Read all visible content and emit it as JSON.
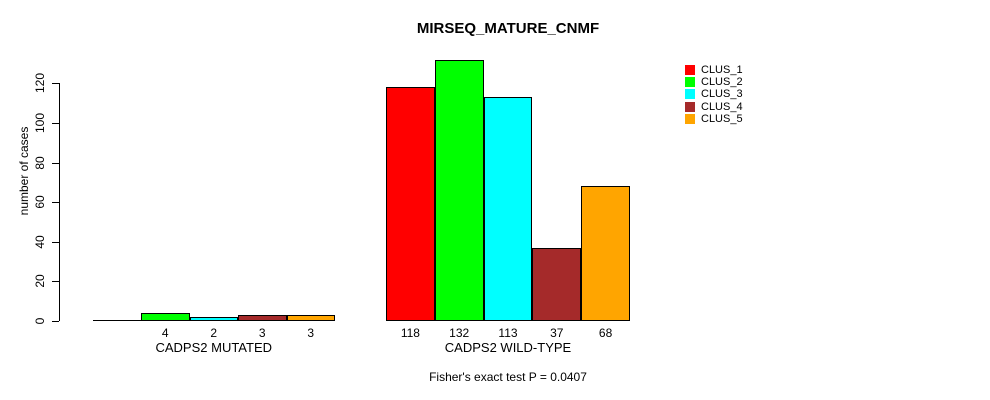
{
  "figure": {
    "title": "MIRSEQ_MATURE_CNMF",
    "note": "Fisher's exact test P = 0.0407"
  },
  "chart_data": {
    "type": "bar",
    "title": "MIRSEQ_MATURE_CNMF",
    "xlabel": "",
    "ylabel": "number of cases",
    "ylim": [
      0,
      120
    ],
    "yticks": [
      0,
      20,
      40,
      60,
      80,
      100,
      120
    ],
    "grid": false,
    "legend_position": "topright",
    "categories": [
      "CADPS2 MUTATED",
      "CADPS2 WILD-TYPE"
    ],
    "series": [
      {
        "name": "CLUS_1",
        "color": "#ff0000",
        "values": [
          0,
          118
        ]
      },
      {
        "name": "CLUS_2",
        "color": "#00ff00",
        "values": [
          4,
          132
        ]
      },
      {
        "name": "CLUS_3",
        "color": "#00ffff",
        "values": [
          2,
          113
        ]
      },
      {
        "name": "CLUS_4",
        "color": "#a52a2a",
        "values": [
          3,
          37
        ]
      },
      {
        "name": "CLUS_5",
        "color": "#ffa500",
        "values": [
          3,
          68
        ]
      }
    ],
    "bar_value_labels": [
      [
        "",
        "4",
        "2",
        "3",
        "3"
      ],
      [
        "118",
        "132",
        "113",
        "37",
        "68"
      ]
    ],
    "annotation": "Fisher's exact test P = 0.0407"
  }
}
